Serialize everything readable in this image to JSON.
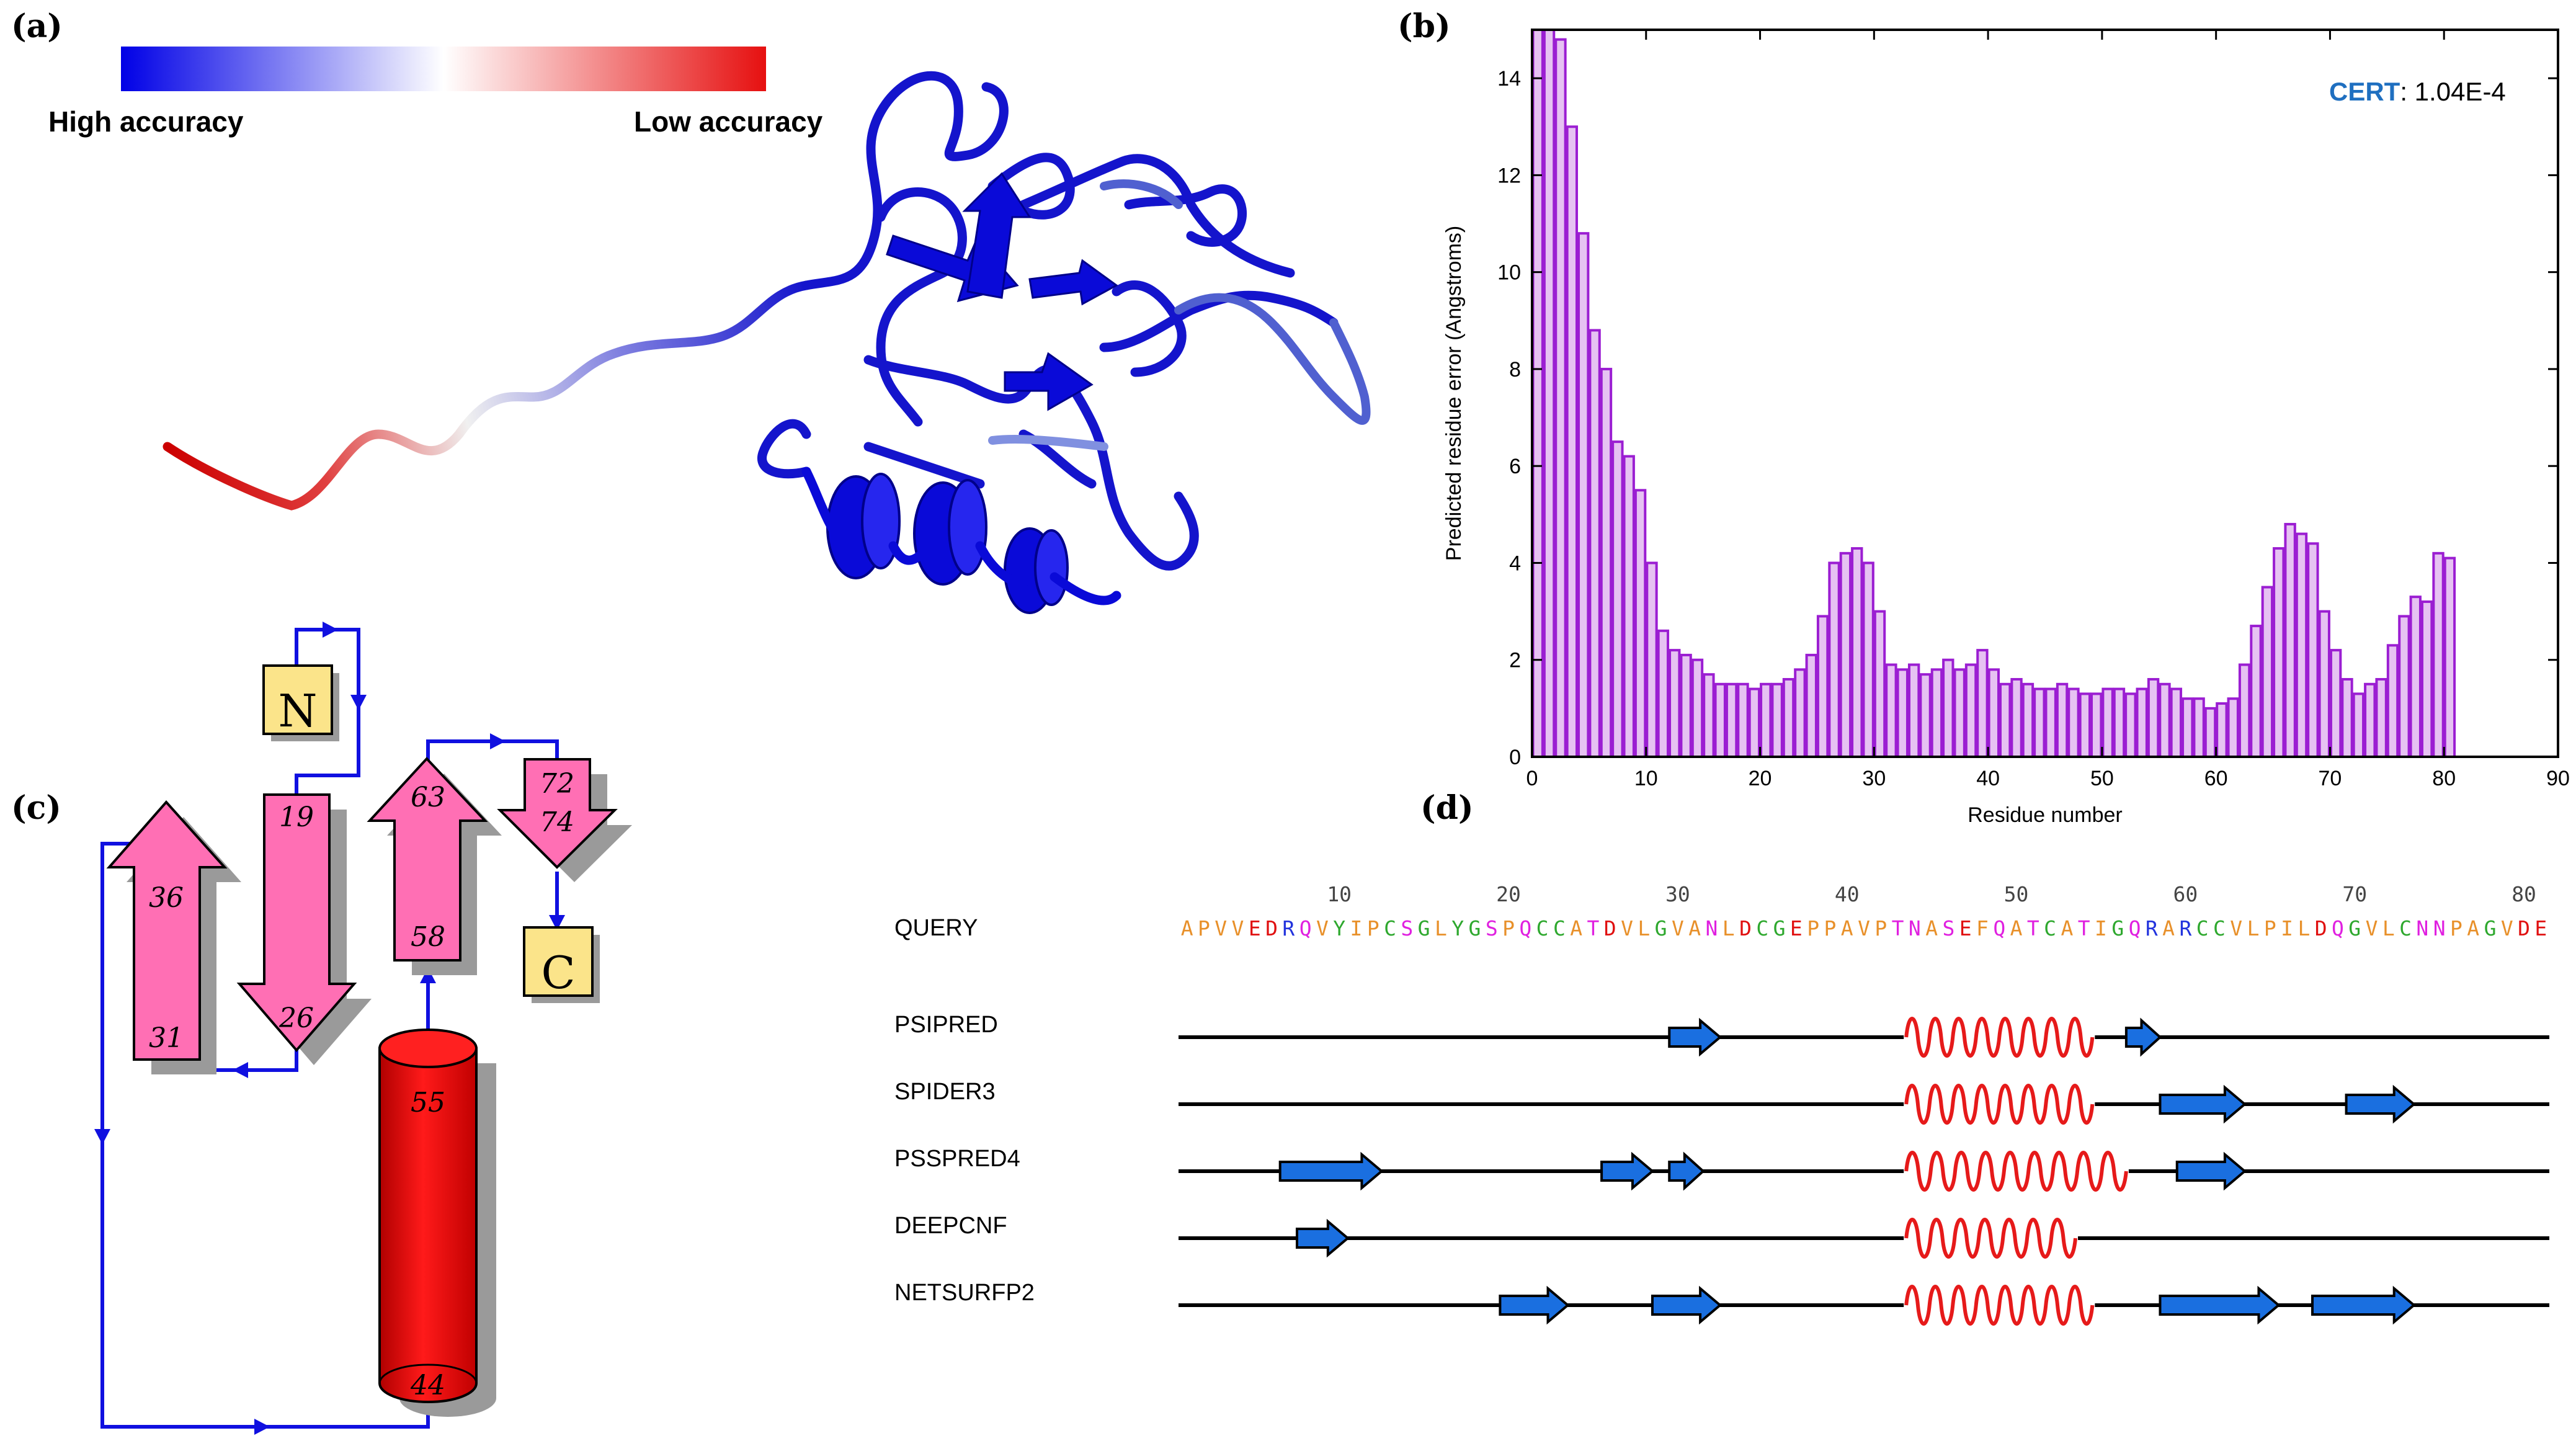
{
  "panels": {
    "a": "(a)",
    "b": "(b)",
    "c": "(c)",
    "d": "(d)"
  },
  "colorbar": {
    "left_label": "High accuracy",
    "right_label": "Low accuracy",
    "colors": [
      "#0000e6",
      "#ffffff",
      "#e61010"
    ]
  },
  "chart_data": {
    "type": "bar",
    "xlabel": "Residue number",
    "ylabel": "Predicted residue error (Angstroms)",
    "xlim": [
      0,
      90
    ],
    "ylim": [
      0,
      15
    ],
    "xticks": [
      0,
      10,
      20,
      30,
      40,
      50,
      60,
      70,
      80,
      90
    ],
    "yticks": [
      0,
      2,
      4,
      6,
      8,
      10,
      12,
      14
    ],
    "bar_color": "#9b1ed2",
    "bar_fill": "#e6c2f2",
    "annotation_name": "CERT",
    "annotation_value": ": 1.04E-4",
    "values": [
      15.0,
      15.0,
      14.8,
      13.0,
      10.8,
      8.8,
      8.0,
      6.5,
      6.2,
      5.5,
      4.0,
      2.6,
      2.2,
      2.1,
      2.0,
      1.7,
      1.5,
      1.5,
      1.5,
      1.4,
      1.5,
      1.5,
      1.6,
      1.8,
      2.1,
      2.9,
      4.0,
      4.2,
      4.3,
      4.0,
      3.0,
      1.9,
      1.8,
      1.9,
      1.7,
      1.8,
      2.0,
      1.8,
      1.9,
      2.2,
      1.8,
      1.5,
      1.6,
      1.5,
      1.4,
      1.4,
      1.5,
      1.4,
      1.3,
      1.3,
      1.4,
      1.4,
      1.3,
      1.4,
      1.6,
      1.5,
      1.4,
      1.2,
      1.2,
      1.0,
      1.1,
      1.2,
      1.9,
      2.7,
      3.5,
      4.3,
      4.8,
      4.6,
      4.4,
      3.0,
      2.2,
      1.6,
      1.3,
      1.5,
      1.6,
      2.3,
      2.9,
      3.3,
      3.2,
      4.2,
      4.1
    ]
  },
  "topology": {
    "n_term": "N",
    "c_term": "C",
    "labels": [
      "36",
      "31",
      "19",
      "26",
      "63",
      "58",
      "72",
      "74",
      "55",
      "44"
    ]
  },
  "alignment": {
    "query_label": "QUERY",
    "ruler": [
      "10",
      "20",
      "30",
      "40",
      "50",
      "60",
      "70",
      "80"
    ],
    "sequence": "APVVEDRQVYIPCSGLYGSPQCCATDVLGVANLDCGEPPAVPTNASEFQATCATIGQRARCCVLPILDQGVLCNNPAGVDE",
    "colors": {
      "hydrophobic": "#e8902a",
      "acidic": "#e01010",
      "basic": "#2233dd",
      "polar": "#e020e0",
      "other": "#2ea82e"
    },
    "methods": [
      {
        "name": "PSIPRED",
        "strands": [
          [
            30,
            32
          ],
          [
            57,
            58
          ]
        ],
        "helix": [
          44,
          54
        ]
      },
      {
        "name": "SPIDER3",
        "strands": [
          [
            59,
            63
          ],
          [
            70,
            73
          ]
        ],
        "helix": [
          44,
          54
        ]
      },
      {
        "name": "PSSPRED4",
        "strands": [
          [
            7,
            12
          ],
          [
            26,
            28
          ],
          [
            30,
            31
          ],
          [
            60,
            63
          ]
        ],
        "helix": [
          44,
          56
        ]
      },
      {
        "name": "DEEPCNF",
        "strands": [
          [
            8,
            10
          ]
        ],
        "helix": [
          44,
          53
        ]
      },
      {
        "name": "NETSURFP2",
        "strands": [
          [
            20,
            23
          ],
          [
            29,
            32
          ],
          [
            59,
            65
          ],
          [
            68,
            73
          ]
        ],
        "helix": [
          44,
          54
        ]
      }
    ],
    "strand_color": "#1a6fe0",
    "helix_color": "#e61a1a"
  }
}
